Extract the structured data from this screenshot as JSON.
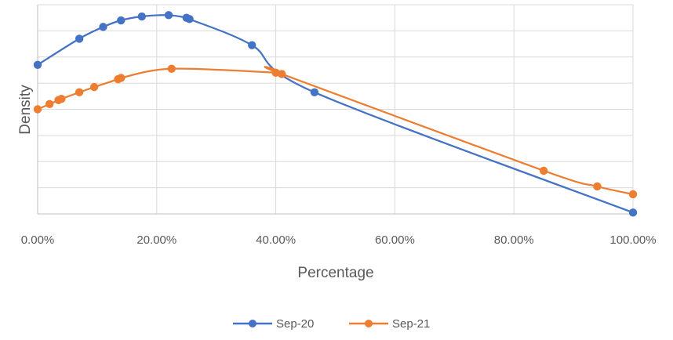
{
  "chart_data": {
    "type": "line",
    "title": "",
    "xlabel": "Percentage",
    "ylabel": "Density",
    "xlim": [
      0,
      1
    ],
    "ylim": [
      0,
      8
    ],
    "x_ticks": [
      0,
      0.2,
      0.4,
      0.6,
      0.8,
      1.0
    ],
    "x_tick_labels": [
      "0.00%",
      "20.00%",
      "40.00%",
      "60.00%",
      "80.00%",
      "100.00%"
    ],
    "y_tick_labels_shown": false,
    "grid": true,
    "legend_position": "bottom",
    "series": [
      {
        "name": "Sep-20",
        "color": "#4472c4",
        "points": [
          [
            0.0,
            5.7
          ],
          [
            0.07,
            6.7
          ],
          [
            0.11,
            7.15
          ],
          [
            0.14,
            7.4
          ],
          [
            0.175,
            7.55
          ],
          [
            0.22,
            7.6
          ],
          [
            0.25,
            7.5
          ],
          [
            0.255,
            7.45
          ],
          [
            0.36,
            6.45
          ],
          [
            0.465,
            4.65
          ],
          [
            1.0,
            0.05
          ]
        ]
      },
      {
        "name": "Sep-21",
        "color": "#ed7d31",
        "points": [
          [
            0.0,
            4.0
          ],
          [
            0.02,
            4.2
          ],
          [
            0.035,
            4.35
          ],
          [
            0.04,
            4.4
          ],
          [
            0.07,
            4.65
          ],
          [
            0.095,
            4.85
          ],
          [
            0.135,
            5.15
          ],
          [
            0.14,
            5.2
          ],
          [
            0.225,
            5.55
          ],
          [
            0.4,
            5.4
          ],
          [
            0.41,
            5.35
          ],
          [
            0.85,
            1.65
          ],
          [
            0.94,
            1.05
          ],
          [
            1.0,
            0.75
          ]
        ]
      }
    ]
  }
}
